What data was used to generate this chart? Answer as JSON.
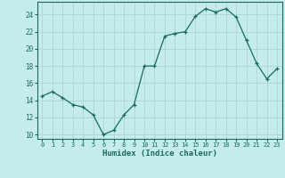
{
  "x": [
    0,
    1,
    2,
    3,
    4,
    5,
    6,
    7,
    8,
    9,
    10,
    11,
    12,
    13,
    14,
    15,
    16,
    17,
    18,
    19,
    20,
    21,
    22,
    23
  ],
  "y": [
    14.5,
    15.0,
    14.3,
    13.5,
    13.2,
    12.3,
    10.0,
    10.5,
    12.3,
    13.5,
    18.0,
    18.0,
    21.5,
    21.8,
    22.0,
    23.8,
    24.7,
    24.3,
    24.7,
    23.7,
    21.0,
    18.3,
    16.5,
    17.7
  ],
  "xlabel": "Humidex (Indice chaleur)",
  "bg_color": "#c5ecec",
  "grid_color": "#b0d8d8",
  "line_color": "#1a6b5a",
  "ylim": [
    9.5,
    25.5
  ],
  "xlim": [
    -0.5,
    23.5
  ],
  "yticks": [
    10,
    12,
    14,
    16,
    18,
    20,
    22,
    24
  ],
  "xticks": [
    0,
    1,
    2,
    3,
    4,
    5,
    6,
    7,
    8,
    9,
    10,
    11,
    12,
    13,
    14,
    15,
    16,
    17,
    18,
    19,
    20,
    21,
    22,
    23
  ]
}
